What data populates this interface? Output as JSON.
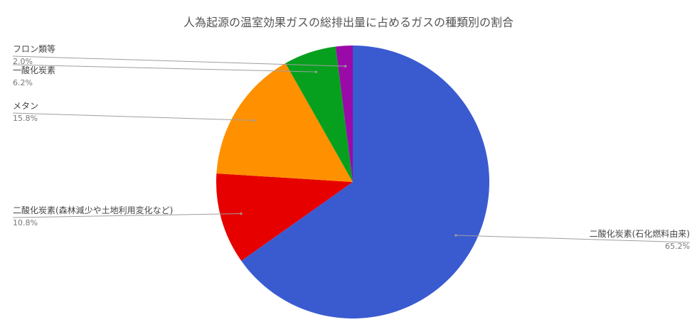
{
  "chart_data": {
    "type": "pie",
    "title": "人為起源の温室効果ガスの総排出量に占めるガスの種類別の割合",
    "slices": [
      {
        "label": "二酸化炭素(石化燃料由来)",
        "value": 65.2,
        "value_label": "65.2%",
        "color": "#3a5bd0",
        "label_side": "right"
      },
      {
        "label": "二酸化炭素(森林減少や土地利用変化など)",
        "value": 10.8,
        "value_label": "10.8%",
        "color": "#e60000",
        "label_side": "left"
      },
      {
        "label": "メタン",
        "value": 15.8,
        "value_label": "15.8%",
        "color": "#ff9000",
        "label_side": "left"
      },
      {
        "label": "一酸化炭素",
        "value": 6.2,
        "value_label": "6.2%",
        "color": "#07a01e",
        "label_side": "left"
      },
      {
        "label": "フロン類等",
        "value": 2.0,
        "value_label": "2.0%",
        "color": "#9a0aa8",
        "label_side": "left"
      }
    ],
    "start": "top",
    "direction": "clockwise",
    "legend": "none"
  }
}
